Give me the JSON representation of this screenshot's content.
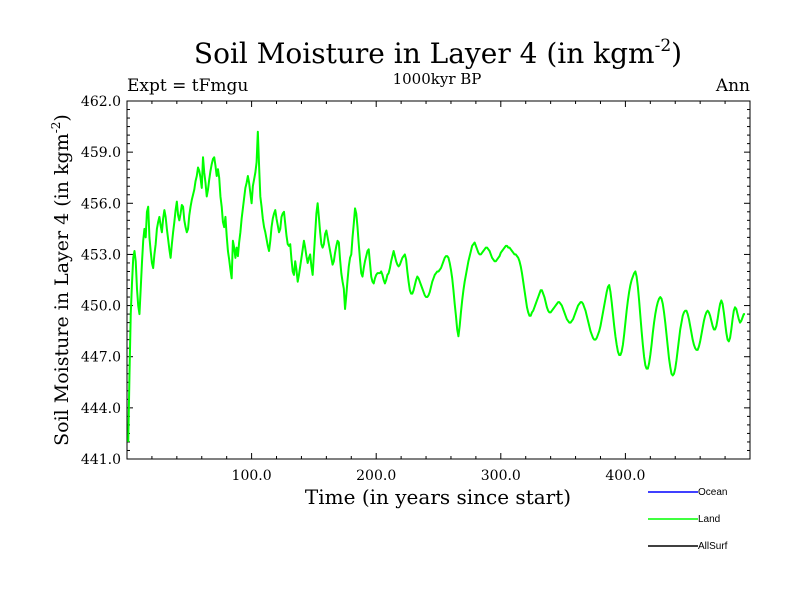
{
  "chart_data": {
    "type": "line",
    "title": "Soil Moisture in Layer 4 (in kgm",
    "title_exponent": "-2",
    "title_close": ")",
    "subtitle": "1000kyr BP",
    "left_label": "Expt = tFmgu",
    "right_label": "Ann",
    "xlabel": "Time (in years since start)",
    "ylabel": "Soil Moisture in Layer 4 (in kgm",
    "ylabel_exponent": "-2",
    "ylabel_close": ")",
    "xlim": [
      0,
      500
    ],
    "ylim": [
      441.0,
      462.0
    ],
    "x_ticks": [
      100,
      200,
      300,
      400
    ],
    "x_tick_labels": [
      "100.0",
      "200.0",
      "300.0",
      "400.0"
    ],
    "y_ticks": [
      441,
      444,
      447,
      450,
      453,
      456,
      459,
      462
    ],
    "y_tick_labels": [
      "441.0",
      "444.0",
      "447.0",
      "450.0",
      "453.0",
      "456.0",
      "459.0",
      "462.0"
    ],
    "grid": false,
    "legend_position": "bottom-right",
    "series": [
      {
        "name": "Ocean",
        "color": "#0000ff",
        "values": []
      },
      {
        "name": "Land",
        "color": "#00ff00",
        "x_start": 1,
        "x_step": 1,
        "values": [
          442.0,
          446.0,
          449.5,
          451.3,
          452.8,
          453.2,
          452.6,
          451.0,
          450.0,
          449.5,
          451.0,
          452.5,
          453.8,
          454.5,
          454.0,
          455.5,
          455.8,
          454.0,
          453.2,
          452.5,
          452.2,
          453.0,
          453.6,
          454.5,
          454.9,
          455.2,
          454.7,
          454.3,
          455.1,
          455.6,
          455.2,
          454.5,
          453.9,
          453.3,
          452.8,
          453.6,
          454.3,
          454.9,
          455.6,
          456.1,
          455.3,
          455.0,
          455.4,
          455.9,
          455.8,
          455.0,
          454.6,
          454.3,
          454.5,
          455.3,
          455.8,
          456.2,
          456.5,
          456.8,
          457.3,
          457.6,
          458.1,
          457.9,
          457.5,
          456.9,
          458.7,
          457.8,
          457.2,
          456.4,
          456.8,
          457.4,
          457.9,
          458.3,
          458.6,
          458.7,
          458.2,
          457.6,
          458.0,
          457.5,
          456.4,
          455.8,
          454.9,
          454.6,
          455.2,
          454.1,
          453.2,
          452.7,
          452.1,
          451.6,
          453.8,
          453.4,
          452.8,
          453.4,
          452.9,
          453.7,
          454.3,
          455.1,
          455.7,
          456.3,
          456.9,
          457.2,
          457.6,
          457.2,
          456.6,
          456.0,
          457.0,
          457.4,
          457.8,
          458.4,
          460.2,
          458.2,
          456.4,
          455.8,
          455.1,
          454.6,
          454.3,
          453.9,
          453.5,
          453.2,
          453.8,
          454.6,
          455.1,
          455.4,
          455.6,
          455.1,
          454.7,
          454.3,
          454.5,
          455.2,
          455.4,
          455.5,
          454.8,
          454.1,
          453.6,
          453.5,
          453.6,
          452.7,
          452.0,
          451.8,
          452.6,
          452.1,
          451.4,
          451.8,
          452.3,
          452.8,
          453.3,
          453.8,
          453.4,
          452.9,
          452.5,
          452.8,
          453.0,
          452.3,
          451.8,
          453.0,
          454.2,
          455.4,
          456.0,
          455.2,
          454.3,
          453.6,
          453.4,
          453.6,
          454.2,
          454.4,
          454.0,
          453.6,
          453.2,
          452.8,
          452.4,
          452.6,
          453.1,
          453.5,
          453.8,
          453.7,
          452.7,
          451.9,
          451.4,
          451.0,
          449.8,
          450.6,
          451.5,
          452.3,
          452.8,
          453.0,
          454.0,
          454.8,
          455.7,
          455.4,
          454.6,
          453.6,
          452.7,
          451.9,
          451.7,
          452.2,
          452.6,
          452.9,
          453.2,
          453.3,
          452.5,
          451.7,
          451.4,
          451.3,
          451.6,
          451.8,
          451.9,
          451.9,
          451.9,
          452.0,
          451.8,
          451.5,
          451.3,
          451.5,
          451.8,
          451.9,
          452.2,
          452.6,
          452.9,
          453.2,
          452.9,
          452.6,
          452.4,
          452.3,
          452.4,
          452.6,
          452.8,
          452.9,
          453.0,
          452.7,
          452.0,
          451.4,
          450.9,
          450.7,
          450.7,
          450.9,
          451.2,
          451.5,
          451.7,
          451.6,
          451.4,
          451.2,
          451.0,
          450.8,
          450.6,
          450.5,
          450.5,
          450.6,
          450.8,
          451.1,
          451.4,
          451.6,
          451.8,
          451.9,
          452.0,
          452.0,
          452.1,
          452.2,
          452.4,
          452.6,
          452.8,
          452.9,
          452.9,
          452.8,
          452.5,
          452.1,
          451.6,
          450.9,
          450.1,
          449.4,
          448.6,
          448.2,
          448.8,
          449.6,
          450.3,
          450.9,
          451.4,
          451.8,
          452.2,
          452.6,
          452.9,
          453.2,
          453.5,
          453.6,
          453.7,
          453.5,
          453.3,
          453.1,
          453.0,
          453.0,
          453.1,
          453.2,
          453.3,
          453.4,
          453.4,
          453.3,
          453.2,
          453.0,
          452.8,
          452.7,
          452.6,
          452.6,
          452.7,
          452.8,
          452.9,
          453.1,
          453.2,
          453.3,
          453.4,
          453.5,
          453.5,
          453.4,
          453.4,
          453.3,
          453.2,
          453.1,
          453.0,
          453.0,
          452.9,
          452.8,
          452.6,
          452.3,
          451.9,
          451.4,
          450.9,
          450.4,
          449.9,
          449.6,
          449.4,
          449.4,
          449.6,
          449.7,
          449.9,
          450.1,
          450.3,
          450.5,
          450.7,
          450.9,
          450.9,
          450.7,
          450.5,
          450.2,
          449.9,
          449.7,
          449.6,
          449.6,
          449.7,
          449.8,
          449.9,
          450.0,
          450.1,
          450.2,
          450.2,
          450.1,
          450.0,
          449.8,
          449.6,
          449.4,
          449.2,
          449.1,
          449.0,
          449.0,
          449.1,
          449.2,
          449.4,
          449.6,
          449.8,
          450.0,
          450.1,
          450.2,
          450.2,
          450.1,
          449.9,
          449.7,
          449.4,
          449.1,
          448.8,
          448.5,
          448.3,
          448.1,
          448.0,
          448.0,
          448.1,
          448.3,
          448.5,
          448.8,
          449.2,
          449.6,
          450.0,
          450.4,
          450.8,
          451.1,
          451.2,
          450.8,
          450.2,
          449.5,
          448.8,
          448.2,
          447.7,
          447.3,
          447.1,
          447.1,
          447.3,
          447.7,
          448.3,
          449.0,
          449.7,
          450.3,
          450.8,
          451.2,
          451.5,
          451.7,
          451.9,
          452.0,
          451.7,
          451.1,
          450.3,
          449.4,
          448.5,
          447.7,
          447.0,
          446.5,
          446.3,
          446.3,
          446.6,
          447.1,
          447.7,
          448.4,
          449.0,
          449.5,
          449.9,
          450.2,
          450.4,
          450.5,
          450.4,
          450.1,
          449.6,
          449.0,
          448.3,
          447.6,
          446.9,
          446.4,
          446.0,
          445.9,
          446.0,
          446.3,
          446.8,
          447.4,
          448.0,
          448.6,
          449.0,
          449.4,
          449.6,
          449.7,
          449.7,
          449.5,
          449.2,
          448.8,
          448.4,
          448.0,
          447.7,
          447.5,
          447.4,
          447.4,
          447.6,
          447.9,
          448.3,
          448.7,
          449.1,
          449.4,
          449.6,
          449.7,
          449.6,
          449.4,
          449.1,
          448.8,
          448.6,
          448.6,
          448.8,
          449.2,
          449.7,
          450.1,
          450.3,
          450.1,
          449.6,
          449.0,
          448.4,
          448.0,
          447.9,
          448.1,
          448.6,
          449.2,
          449.7,
          449.9,
          449.8,
          449.5,
          449.2,
          449.0,
          449.1,
          449.3,
          449.5,
          449.5
        ]
      },
      {
        "name": "AllSurf",
        "color": "#000000",
        "values": []
      }
    ]
  }
}
